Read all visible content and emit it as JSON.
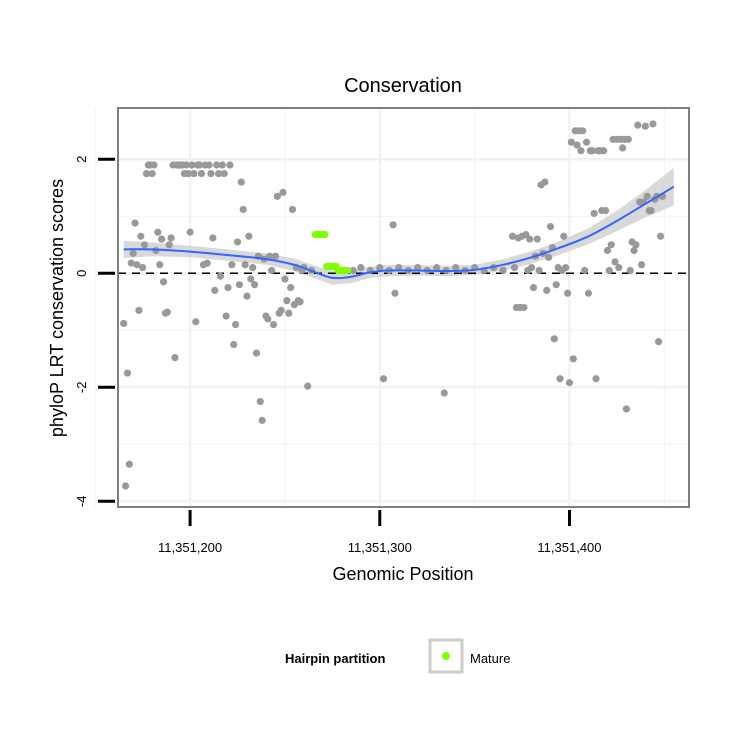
{
  "chart_data": {
    "type": "scatter",
    "title": "Conservation",
    "xlabel": "Genomic Position",
    "ylabel": "phyloP LRT conservation scores",
    "xlim": [
      11351162,
      11351463
    ],
    "ylim": [
      -4.1,
      2.9
    ],
    "x_ticks": [
      {
        "value": 11351200,
        "label": "11,351,200"
      },
      {
        "value": 11351300,
        "label": "11,351,300"
      },
      {
        "value": 11351400,
        "label": "11,351,400"
      }
    ],
    "y_ticks": [
      {
        "value": 2,
        "label": "2"
      },
      {
        "value": 0,
        "label": "0"
      },
      {
        "value": -2,
        "label": "-2"
      },
      {
        "value": -4,
        "label": "-4"
      }
    ],
    "grid": true,
    "reference_line": {
      "y": 0,
      "style": "dashed"
    },
    "colors": {
      "points": "#999999",
      "mature": "#7fff00",
      "smooth": "#3366ff",
      "ribbon": "#cccccc",
      "panel_border": "#7f7f7f",
      "grid": "#f2f2f2"
    },
    "legend": {
      "title": "Hairpin partition",
      "position": "bottom",
      "entries": [
        {
          "label": "Mature",
          "color": "#7fff00"
        }
      ]
    },
    "series": [
      {
        "kind": "points",
        "points": [
          [
            11351165,
            -0.88
          ],
          [
            11351166,
            -3.73
          ],
          [
            11351167,
            -1.75
          ],
          [
            11351168,
            -3.35
          ],
          [
            11351169,
            0.18
          ],
          [
            11351170,
            0.35
          ],
          [
            11351171,
            0.88
          ],
          [
            11351172,
            0.15
          ],
          [
            11351173,
            -0.65
          ],
          [
            11351174,
            0.65
          ],
          [
            11351175,
            0.1
          ],
          [
            11351176,
            0.5
          ],
          [
            11351177,
            1.75
          ],
          [
            11351178,
            1.9
          ],
          [
            11351179,
            1.9
          ],
          [
            11351180,
            1.75
          ],
          [
            11351181,
            1.9
          ],
          [
            11351182,
            0.4
          ],
          [
            11351183,
            0.72
          ],
          [
            11351184,
            0.15
          ],
          [
            11351185,
            0.6
          ],
          [
            11351186,
            -0.15
          ],
          [
            11351187,
            -0.7
          ],
          [
            11351188,
            -0.68
          ],
          [
            11351189,
            0.5
          ],
          [
            11351190,
            0.62
          ],
          [
            11351191,
            1.9
          ],
          [
            11351192,
            -1.48
          ],
          [
            11351193,
            1.9
          ],
          [
            11351194,
            1.9
          ],
          [
            11351195,
            1.9
          ],
          [
            11351196,
            1.9
          ],
          [
            11351197,
            1.75
          ],
          [
            11351198,
            1.9
          ],
          [
            11351199,
            1.75
          ],
          [
            11351200,
            0.72
          ],
          [
            11351201,
            1.9
          ],
          [
            11351202,
            1.75
          ],
          [
            11351203,
            -0.85
          ],
          [
            11351204,
            1.9
          ],
          [
            11351205,
            1.9
          ],
          [
            11351206,
            1.75
          ],
          [
            11351207,
            0.15
          ],
          [
            11351208,
            1.9
          ],
          [
            11351209,
            0.18
          ],
          [
            11351210,
            1.9
          ],
          [
            11351211,
            1.75
          ],
          [
            11351212,
            0.62
          ],
          [
            11351213,
            -0.3
          ],
          [
            11351214,
            1.9
          ],
          [
            11351215,
            1.75
          ],
          [
            11351216,
            -0.05
          ],
          [
            11351217,
            1.9
          ],
          [
            11351218,
            1.75
          ],
          [
            11351219,
            -0.75
          ],
          [
            11351220,
            -0.25
          ],
          [
            11351221,
            1.9
          ],
          [
            11351222,
            0.15
          ],
          [
            11351223,
            -1.25
          ],
          [
            11351224,
            -0.9
          ],
          [
            11351225,
            0.55
          ],
          [
            11351226,
            -0.2
          ],
          [
            11351227,
            1.6
          ],
          [
            11351228,
            1.12
          ],
          [
            11351229,
            0.15
          ],
          [
            11351230,
            -0.4
          ],
          [
            11351231,
            0.65
          ],
          [
            11351232,
            -0.1
          ],
          [
            11351233,
            0.1
          ],
          [
            11351234,
            -0.2
          ],
          [
            11351235,
            -1.4
          ],
          [
            11351236,
            0.3
          ],
          [
            11351237,
            -2.25
          ],
          [
            11351238,
            -2.58
          ],
          [
            11351239,
            0.25
          ],
          [
            11351240,
            -0.75
          ],
          [
            11351241,
            -0.8
          ],
          [
            11351242,
            0.3
          ],
          [
            11351243,
            0.05
          ],
          [
            11351244,
            -0.9
          ],
          [
            11351245,
            0.3
          ],
          [
            11351246,
            1.35
          ],
          [
            11351247,
            -0.7
          ],
          [
            11351248,
            -0.65
          ],
          [
            11351249,
            1.42
          ],
          [
            11351250,
            -0.1
          ],
          [
            11351251,
            -0.48
          ],
          [
            11351252,
            -0.7
          ],
          [
            11351253,
            -0.25
          ],
          [
            11351254,
            1.12
          ],
          [
            11351255,
            -0.55
          ],
          [
            11351256,
            0.1
          ],
          [
            11351257,
            -0.48
          ],
          [
            11351258,
            -0.5
          ],
          [
            11351259,
            0.05
          ],
          [
            11351260,
            0.1
          ],
          [
            11351262,
            -1.98
          ],
          [
            11351264,
            0.05
          ],
          [
            11351286,
            0.05
          ],
          [
            11351290,
            0.1
          ],
          [
            11351295,
            0.05
          ],
          [
            11351300,
            0.1
          ],
          [
            11351305,
            0.05
          ],
          [
            11351307,
            0.85
          ],
          [
            11351308,
            -0.35
          ],
          [
            11351310,
            0.1
          ],
          [
            11351315,
            0.05
          ],
          [
            11351320,
            0.1
          ],
          [
            11351325,
            0.05
          ],
          [
            11351330,
            0.1
          ],
          [
            11351335,
            0.05
          ],
          [
            11351340,
            0.1
          ],
          [
            11351302,
            -1.85
          ],
          [
            11351334,
            -2.1
          ],
          [
            11351345,
            0.05
          ],
          [
            11351350,
            0.1
          ],
          [
            11351355,
            0.05
          ],
          [
            11351360,
            0.1
          ],
          [
            11351365,
            0.05
          ],
          [
            11351370,
            0.65
          ],
          [
            11351371,
            0.1
          ],
          [
            11351372,
            -0.6
          ],
          [
            11351373,
            0.62
          ],
          [
            11351374,
            -0.6
          ],
          [
            11351375,
            0.65
          ],
          [
            11351376,
            -0.6
          ],
          [
            11351377,
            0.68
          ],
          [
            11351378,
            0.05
          ],
          [
            11351379,
            0.6
          ],
          [
            11351380,
            0.1
          ],
          [
            11351381,
            -0.25
          ],
          [
            11351382,
            0.3
          ],
          [
            11351383,
            0.6
          ],
          [
            11351384,
            0.05
          ],
          [
            11351385,
            1.55
          ],
          [
            11351386,
            0.35
          ],
          [
            11351387,
            1.6
          ],
          [
            11351388,
            -0.3
          ],
          [
            11351389,
            0.28
          ],
          [
            11351390,
            0.82
          ],
          [
            11351391,
            0.45
          ],
          [
            11351392,
            -1.15
          ],
          [
            11351393,
            -0.2
          ],
          [
            11351394,
            0.1
          ],
          [
            11351395,
            -1.85
          ],
          [
            11351396,
            0.05
          ],
          [
            11351397,
            0.65
          ],
          [
            11351398,
            0.1
          ],
          [
            11351399,
            -0.35
          ],
          [
            11351400,
            -1.92
          ],
          [
            11351401,
            2.3
          ],
          [
            11351402,
            -1.5
          ],
          [
            11351403,
            2.5
          ],
          [
            11351404,
            2.25
          ],
          [
            11351405,
            2.5
          ],
          [
            11351406,
            2.15
          ],
          [
            11351407,
            2.5
          ],
          [
            11351408,
            0.05
          ],
          [
            11351409,
            2.3
          ],
          [
            11351410,
            -0.35
          ],
          [
            11351411,
            2.15
          ],
          [
            11351412,
            2.15
          ],
          [
            11351413,
            1.05
          ],
          [
            11351414,
            -1.85
          ],
          [
            11351415,
            2.15
          ],
          [
            11351416,
            2.15
          ],
          [
            11351417,
            1.1
          ],
          [
            11351418,
            2.15
          ],
          [
            11351419,
            1.1
          ],
          [
            11351420,
            0.4
          ],
          [
            11351421,
            0.05
          ],
          [
            11351422,
            0.5
          ],
          [
            11351423,
            2.35
          ],
          [
            11351424,
            0.2
          ],
          [
            11351425,
            2.35
          ],
          [
            11351426,
            0.1
          ],
          [
            11351427,
            2.35
          ],
          [
            11351428,
            2.2
          ],
          [
            11351429,
            2.35
          ],
          [
            11351430,
            -2.38
          ],
          [
            11351431,
            2.35
          ],
          [
            11351432,
            0.05
          ],
          [
            11351433,
            0.55
          ],
          [
            11351434,
            0.4
          ],
          [
            11351435,
            0.5
          ],
          [
            11351436,
            2.6
          ],
          [
            11351437,
            1.25
          ],
          [
            11351438,
            0.15
          ],
          [
            11351439,
            1.25
          ],
          [
            11351440,
            2.58
          ],
          [
            11351441,
            1.35
          ],
          [
            11351442,
            1.1
          ],
          [
            11351443,
            1.1
          ],
          [
            11351444,
            2.62
          ],
          [
            11351445,
            1.3
          ],
          [
            11351446,
            1.35
          ],
          [
            11351447,
            -1.2
          ],
          [
            11351448,
            0.65
          ],
          [
            11351449,
            1.35
          ]
        ]
      },
      {
        "name": "Mature",
        "kind": "points",
        "points": [
          [
            11351266,
            0.68
          ],
          [
            11351267,
            0.68
          ],
          [
            11351268,
            0.68
          ],
          [
            11351269,
            0.68
          ],
          [
            11351270,
            0.68
          ],
          [
            11351271,
            0.68
          ],
          [
            11351272,
            0.12
          ],
          [
            11351273,
            0.12
          ],
          [
            11351274,
            0.12
          ],
          [
            11351275,
            0.12
          ],
          [
            11351276,
            0.12
          ],
          [
            11351277,
            0.12
          ],
          [
            11351278,
            0.05
          ],
          [
            11351279,
            0.05
          ],
          [
            11351280,
            0.05
          ],
          [
            11351281,
            0.05
          ],
          [
            11351282,
            0.05
          ],
          [
            11351283,
            0.05
          ]
        ]
      },
      {
        "kind": "smooth",
        "points": [
          [
            11351165,
            0.42
          ],
          [
            11351180,
            0.42
          ],
          [
            11351200,
            0.38
          ],
          [
            11351220,
            0.32
          ],
          [
            11351240,
            0.25
          ],
          [
            11351255,
            0.15
          ],
          [
            11351265,
            0.03
          ],
          [
            11351275,
            -0.08
          ],
          [
            11351285,
            -0.06
          ],
          [
            11351295,
            0.02
          ],
          [
            11351305,
            0.05
          ],
          [
            11351320,
            0.05
          ],
          [
            11351335,
            0.04
          ],
          [
            11351350,
            0.06
          ],
          [
            11351365,
            0.15
          ],
          [
            11351380,
            0.28
          ],
          [
            11351395,
            0.45
          ],
          [
            11351410,
            0.65
          ],
          [
            11351425,
            0.92
          ],
          [
            11351440,
            1.22
          ],
          [
            11351455,
            1.52
          ]
        ],
        "band_half_width": [
          0.15,
          0.12,
          0.1,
          0.1,
          0.1,
          0.11,
          0.11,
          0.12,
          0.11,
          0.1,
          0.1,
          0.09,
          0.09,
          0.09,
          0.1,
          0.11,
          0.12,
          0.14,
          0.18,
          0.24,
          0.33
        ]
      }
    ]
  }
}
